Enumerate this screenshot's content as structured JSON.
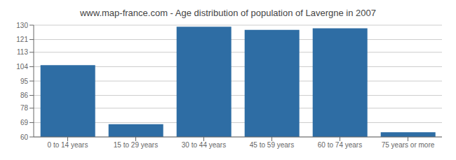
{
  "chart_data": {
    "type": "bar",
    "title": "www.map-france.com - Age distribution of population of Lavergne in 2007",
    "categories": [
      "0 to 14 years",
      "15 to 29 years",
      "30 to 44 years",
      "45 to 59 years",
      "60 to 74 years",
      "75 years or more"
    ],
    "values": [
      105,
      68,
      129,
      127,
      128,
      63
    ],
    "color": "#2e6da4",
    "ylim": [
      60,
      130
    ],
    "yticks": [
      60,
      69,
      78,
      86,
      95,
      104,
      113,
      121,
      130
    ],
    "grid": true
  }
}
